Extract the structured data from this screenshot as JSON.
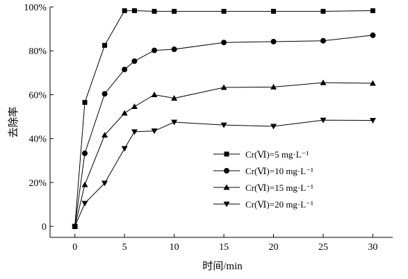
{
  "chart_data": {
    "type": "line",
    "xlabel": "时间/min",
    "ylabel": "去除率",
    "xlim": [
      -2.5,
      32
    ],
    "ylim": [
      -5,
      100
    ],
    "xticks": [
      0,
      5,
      10,
      15,
      20,
      25,
      30
    ],
    "yticks": [
      0,
      20,
      40,
      60,
      80,
      100
    ],
    "ytick_labels": [
      "0",
      "20%",
      "40%",
      "60%",
      "80%",
      "100%"
    ],
    "grid": false,
    "legend_position": "lower-right",
    "series": [
      {
        "name": "Cr(Ⅵ)=5 mg·L⁻¹",
        "marker": "square",
        "x": [
          0,
          1,
          3,
          5,
          6,
          8,
          10,
          15,
          20,
          25,
          30
        ],
        "y": [
          0,
          56.5,
          82.5,
          98.3,
          98.3,
          98.0,
          98.0,
          98.0,
          98.0,
          98.0,
          98.3
        ]
      },
      {
        "name": "Cr(Ⅵ)=10 mg·L⁻¹",
        "marker": "circle",
        "x": [
          0,
          1,
          3,
          5,
          6,
          8,
          10,
          15,
          20,
          25,
          30
        ],
        "y": [
          0,
          33.3,
          60.4,
          71.5,
          75.3,
          80.2,
          80.7,
          83.8,
          84.2,
          84.6,
          87.1
        ]
      },
      {
        "name": "Cr(Ⅵ)=15 mg·L⁻¹",
        "marker": "triangle-up",
        "x": [
          0,
          1,
          3,
          5,
          6,
          8,
          10,
          15,
          20,
          25,
          30
        ],
        "y": [
          0,
          19.0,
          41.6,
          51.6,
          54.6,
          60.0,
          58.4,
          63.3,
          63.5,
          65.5,
          65.2
        ]
      },
      {
        "name": "Cr(Ⅵ)=20 mg·L⁻¹",
        "marker": "triangle-down",
        "x": [
          0,
          1,
          3,
          5,
          6,
          8,
          10,
          15,
          20,
          25,
          30
        ],
        "y": [
          0,
          10.5,
          19.7,
          35.5,
          43.1,
          43.5,
          47.5,
          46.2,
          45.6,
          48.4,
          48.3
        ]
      }
    ]
  }
}
